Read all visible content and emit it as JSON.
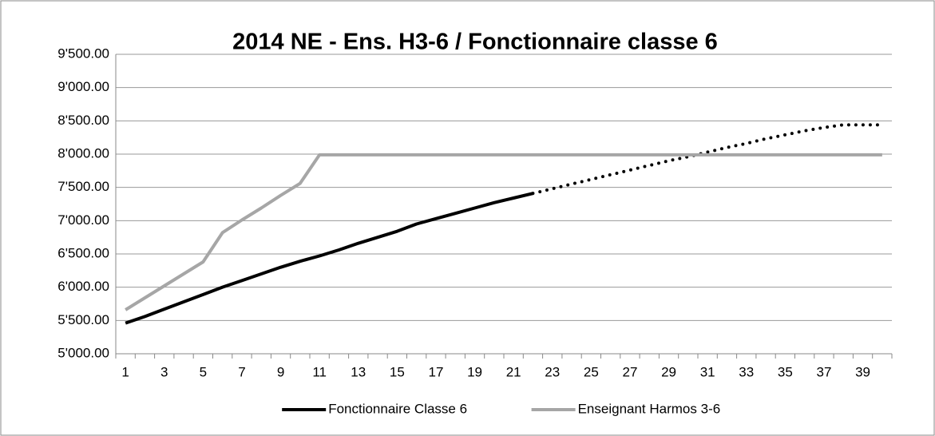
{
  "chart_data": {
    "type": "line",
    "title": "2014 NE - Ens. H3-6 / Fonctionnaire classe 6",
    "categories": [
      1,
      null,
      3,
      null,
      5,
      null,
      7,
      null,
      9,
      null,
      11,
      null,
      13,
      null,
      15,
      null,
      17,
      null,
      19,
      null,
      21,
      null,
      23,
      null,
      25,
      null,
      27,
      null,
      29,
      null,
      31,
      null,
      33,
      null,
      35,
      null,
      37,
      null,
      39,
      null
    ],
    "series": [
      {
        "name": "Fonctionnaire Classe 6",
        "color": "#000000",
        "dotted_from": 22,
        "values": [
          5460,
          5560,
          5670,
          5780,
          5890,
          6000,
          6100,
          6200,
          6300,
          6390,
          6470,
          6560,
          6660,
          6750,
          6840,
          6950,
          7030,
          7110,
          7190,
          7270,
          7340,
          7410,
          7480,
          7550,
          7620,
          7690,
          7760,
          7830,
          7900,
          7960,
          8030,
          8100,
          8160,
          8230,
          8290,
          8350,
          8400,
          8440,
          8440,
          8440
        ]
      },
      {
        "name": "Enseignant Harmos 3-6",
        "color": "#a6a6a6",
        "values": [
          5660,
          5840,
          6020,
          6200,
          6380,
          6820,
          7010,
          7190,
          7380,
          7560,
          7990,
          7990,
          7990,
          7990,
          7990,
          7990,
          7990,
          7990,
          7990,
          7990,
          7990,
          7990,
          7990,
          7990,
          7990,
          7990,
          7990,
          7990,
          7990,
          7990,
          7990,
          7990,
          7990,
          7990,
          7990,
          7990,
          7990,
          7990,
          7990,
          7990
        ]
      }
    ],
    "ylim": [
      5000,
      9500
    ],
    "yticks": [
      {
        "value": 5000,
        "label": "5'000.00"
      },
      {
        "value": 5500,
        "label": "5'500.00"
      },
      {
        "value": 6000,
        "label": "6'000.00"
      },
      {
        "value": 6500,
        "label": "6'500.00"
      },
      {
        "value": 7000,
        "label": "7'000.00"
      },
      {
        "value": 7500,
        "label": "7'500.00"
      },
      {
        "value": 8000,
        "label": "8'000.00"
      },
      {
        "value": 8500,
        "label": "8'500.00"
      },
      {
        "value": 9000,
        "label": "9'000.00"
      },
      {
        "value": 9500,
        "label": "9'500.00"
      }
    ],
    "grid": true,
    "legend": "bottom"
  }
}
